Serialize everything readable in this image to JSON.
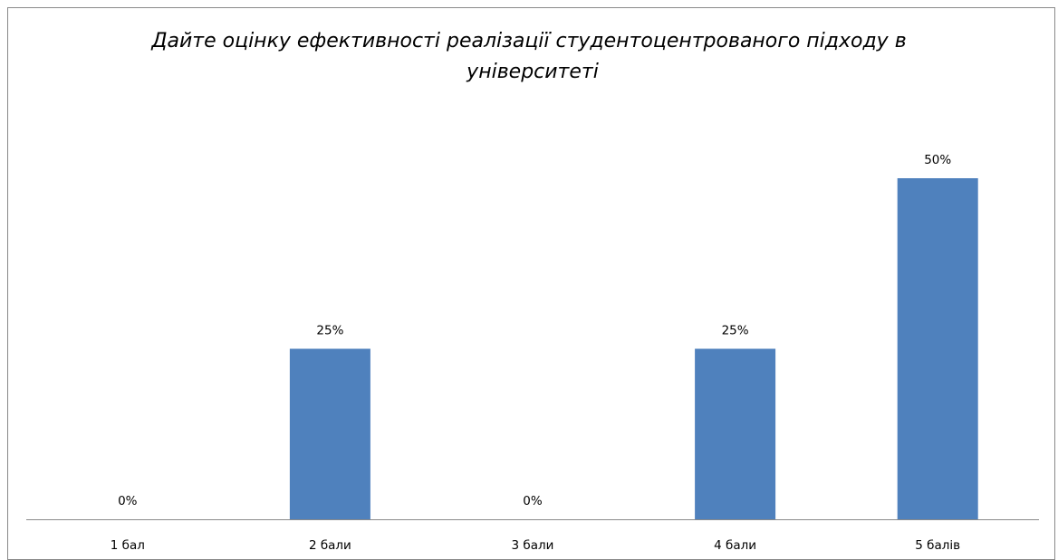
{
  "chart_data": {
    "type": "bar",
    "title": "Дайте оцінку ефективності реалізації студентоцентрованого підходу в університеті",
    "title_lines": [
      "Дайте оцінку ефективності реалізації студентоцентрованого підходу в",
      "університеті"
    ],
    "categories": [
      "1 бал",
      "2 бали",
      "3 бали",
      "4 бали",
      "5 балів"
    ],
    "values": [
      0,
      25,
      0,
      25,
      50
    ],
    "data_labels": [
      "0%",
      "25%",
      "0%",
      "25%",
      "50%"
    ],
    "unit": "%",
    "xlabel": "",
    "ylabel": "",
    "ylim": [
      0,
      60
    ],
    "grid": false,
    "legend": "none",
    "bar_color": "#4F81BD",
    "axis_color": "#898989",
    "border_color": "#898989"
  }
}
